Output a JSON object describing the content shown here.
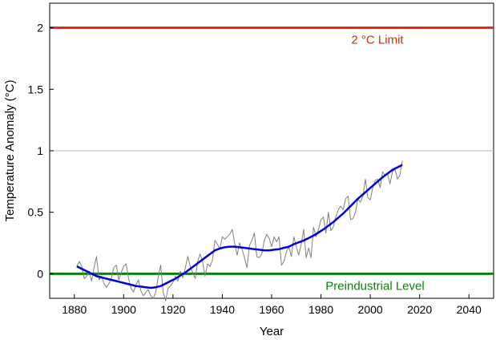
{
  "chart_data": {
    "type": "line",
    "title": "",
    "xlabel": "Year",
    "ylabel": "Temperature Anomaly (°C)",
    "xlim": [
      1870,
      2050
    ],
    "ylim": [
      -0.2,
      2.2
    ],
    "x_ticks": [
      1880,
      1900,
      1920,
      1940,
      1960,
      1980,
      2000,
      2020,
      2040
    ],
    "x_tick_labels": [
      "1880",
      "1900",
      "1920",
      "1940",
      "1960",
      "1980",
      "2000",
      "2020",
      "2040"
    ],
    "y_ticks": [
      0,
      0.5,
      1,
      1.5,
      2
    ],
    "y_tick_labels": [
      "0",
      "0.5",
      "1",
      "1.5",
      "2"
    ],
    "grid": false,
    "reference_lines": [
      {
        "y": 2,
        "label": "2 °C Limit",
        "color": "#d62c0a"
      },
      {
        "y": 1,
        "label": "",
        "color": "#b8b8b8"
      },
      {
        "y": 0,
        "label": "Preindustrial Level",
        "color": "#0f7f0f"
      }
    ],
    "series": [
      {
        "role": "annual",
        "color": "#808080",
        "x": [
          1881,
          1882,
          1883,
          1884,
          1885,
          1886,
          1887,
          1888,
          1889,
          1890,
          1891,
          1892,
          1893,
          1894,
          1895,
          1896,
          1897,
          1898,
          1899,
          1900,
          1901,
          1902,
          1903,
          1904,
          1905,
          1906,
          1907,
          1908,
          1909,
          1910,
          1911,
          1912,
          1913,
          1914,
          1915,
          1916,
          1917,
          1918,
          1919,
          1920,
          1921,
          1922,
          1923,
          1924,
          1925,
          1926,
          1927,
          1928,
          1929,
          1930,
          1931,
          1932,
          1933,
          1934,
          1935,
          1936,
          1937,
          1938,
          1939,
          1940,
          1941,
          1942,
          1943,
          1944,
          1945,
          1946,
          1947,
          1948,
          1949,
          1950,
          1951,
          1952,
          1953,
          1954,
          1955,
          1956,
          1957,
          1958,
          1959,
          1960,
          1961,
          1962,
          1963,
          1964,
          1965,
          1966,
          1967,
          1968,
          1969,
          1970,
          1971,
          1972,
          1973,
          1974,
          1975,
          1976,
          1977,
          1978,
          1979,
          1980,
          1981,
          1982,
          1983,
          1984,
          1985,
          1986,
          1987,
          1988,
          1989,
          1990,
          1991,
          1992,
          1993,
          1994,
          1995,
          1996,
          1997,
          1998,
          1999,
          2000,
          2001,
          2002,
          2003,
          2004,
          2005,
          2006,
          2007,
          2008,
          2009,
          2010,
          2011,
          2012,
          2013
        ],
        "y": [
          0.06,
          0.1,
          0.06,
          -0.04,
          -0.02,
          0.02,
          -0.06,
          0.05,
          0.14,
          -0.05,
          -0.02,
          -0.08,
          -0.11,
          -0.08,
          -0.04,
          0.05,
          0.07,
          -0.05,
          0.01,
          0.06,
          0.08,
          -0.04,
          -0.12,
          -0.15,
          -0.09,
          -0.05,
          -0.14,
          -0.18,
          -0.15,
          -0.13,
          -0.18,
          -0.2,
          -0.15,
          -0.03,
          0.07,
          -0.15,
          -0.22,
          -0.12,
          -0.1,
          -0.07,
          -0.02,
          -0.06,
          0.02,
          -0.03,
          0.05,
          0.14,
          0.06,
          0.01,
          -0.04,
          0.1,
          0.16,
          0.1,
          -0.02,
          0.08,
          0.06,
          0.11,
          0.27,
          0.24,
          0.2,
          0.3,
          0.28,
          0.3,
          0.32,
          0.36,
          0.25,
          0.15,
          0.25,
          0.2,
          0.13,
          0.05,
          0.23,
          0.27,
          0.33,
          0.14,
          0.13,
          0.16,
          0.27,
          0.32,
          0.29,
          0.22,
          0.3,
          0.26,
          0.3,
          0.07,
          0.1,
          0.18,
          0.22,
          0.14,
          0.3,
          0.22,
          0.15,
          0.24,
          0.36,
          0.13,
          0.21,
          0.13,
          0.38,
          0.3,
          0.36,
          0.44,
          0.46,
          0.33,
          0.5,
          0.35,
          0.38,
          0.46,
          0.52,
          0.55,
          0.52,
          0.61,
          0.63,
          0.44,
          0.45,
          0.5,
          0.61,
          0.58,
          0.63,
          0.77,
          0.62,
          0.6,
          0.7,
          0.76,
          0.77,
          0.7,
          0.83,
          0.8,
          0.81,
          0.73,
          0.83,
          0.85,
          0.77,
          0.8,
          0.92
        ]
      },
      {
        "role": "smoothed",
        "color": "#0000d8",
        "x": [
          1881,
          1883,
          1885,
          1887,
          1889,
          1891,
          1893,
          1895,
          1897,
          1899,
          1901,
          1903,
          1905,
          1907,
          1909,
          1911,
          1913,
          1915,
          1917,
          1919,
          1921,
          1923,
          1925,
          1927,
          1929,
          1931,
          1933,
          1935,
          1937,
          1939,
          1941,
          1943,
          1945,
          1947,
          1949,
          1951,
          1953,
          1955,
          1957,
          1959,
          1961,
          1963,
          1965,
          1967,
          1969,
          1971,
          1973,
          1975,
          1977,
          1979,
          1981,
          1983,
          1985,
          1987,
          1989,
          1991,
          1993,
          1995,
          1997,
          1999,
          2001,
          2003,
          2005,
          2007,
          2009,
          2011,
          2013
        ],
        "y": [
          0.06,
          0.04,
          0.02,
          0.0,
          -0.02,
          -0.03,
          -0.04,
          -0.05,
          -0.06,
          -0.07,
          -0.08,
          -0.09,
          -0.1,
          -0.105,
          -0.11,
          -0.115,
          -0.11,
          -0.1,
          -0.08,
          -0.06,
          -0.04,
          -0.015,
          0.01,
          0.04,
          0.07,
          0.1,
          0.13,
          0.16,
          0.19,
          0.205,
          0.215,
          0.22,
          0.22,
          0.215,
          0.21,
          0.205,
          0.2,
          0.195,
          0.19,
          0.19,
          0.195,
          0.2,
          0.21,
          0.22,
          0.24,
          0.255,
          0.27,
          0.29,
          0.31,
          0.335,
          0.36,
          0.39,
          0.42,
          0.455,
          0.49,
          0.53,
          0.57,
          0.61,
          0.645,
          0.68,
          0.715,
          0.75,
          0.785,
          0.815,
          0.845,
          0.865,
          0.885
        ]
      }
    ]
  }
}
